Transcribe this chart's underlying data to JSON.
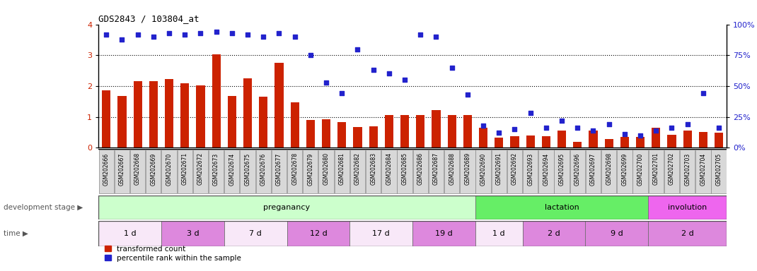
{
  "title": "GDS2843 / 103804_at",
  "samples": [
    "GSM202666",
    "GSM202667",
    "GSM202668",
    "GSM202669",
    "GSM202670",
    "GSM202671",
    "GSM202672",
    "GSM202673",
    "GSM202674",
    "GSM202675",
    "GSM202676",
    "GSM202677",
    "GSM202678",
    "GSM202679",
    "GSM202680",
    "GSM202681",
    "GSM202682",
    "GSM202683",
    "GSM202684",
    "GSM202685",
    "GSM202686",
    "GSM202687",
    "GSM202688",
    "GSM202689",
    "GSM202690",
    "GSM202691",
    "GSM202692",
    "GSM202693",
    "GSM202694",
    "GSM202695",
    "GSM202696",
    "GSM202697",
    "GSM202698",
    "GSM202699",
    "GSM202700",
    "GSM202701",
    "GSM202702",
    "GSM202703",
    "GSM202704",
    "GSM202705"
  ],
  "bar_values": [
    1.85,
    1.68,
    2.15,
    2.15,
    2.22,
    2.1,
    2.02,
    3.03,
    1.68,
    2.25,
    1.65,
    2.75,
    1.48,
    0.9,
    0.92,
    0.84,
    0.68,
    0.7,
    1.05,
    1.05,
    1.05,
    1.22,
    1.05,
    1.05,
    0.65,
    0.32,
    0.38,
    0.4,
    0.38,
    0.55,
    0.2,
    0.55,
    0.28,
    0.35,
    0.35,
    0.65,
    0.42,
    0.56,
    0.5,
    0.48
  ],
  "dot_values": [
    92,
    88,
    92,
    90,
    93,
    92,
    93,
    94,
    93,
    92,
    90,
    93,
    90,
    75,
    53,
    44,
    80,
    63,
    60,
    55,
    92,
    90,
    65,
    43,
    18,
    12,
    15,
    28,
    16,
    22,
    16,
    14,
    19,
    11,
    10,
    14,
    16,
    19,
    44,
    16
  ],
  "ylim": [
    0,
    4
  ],
  "yticks": [
    0,
    1,
    2,
    3,
    4
  ],
  "right_ylim": [
    0,
    100
  ],
  "right_yticks": [
    0,
    25,
    50,
    75,
    100
  ],
  "bar_color": "#cc2200",
  "dot_color": "#2222cc",
  "background_color": "#ffffff",
  "plot_bg": "#ffffff",
  "dev_stage_row": [
    {
      "label": "preganancy",
      "start": 0,
      "end": 24,
      "color": "#ccffcc"
    },
    {
      "label": "lactation",
      "start": 24,
      "end": 35,
      "color": "#66ee66"
    },
    {
      "label": "involution",
      "start": 35,
      "end": 40,
      "color": "#ee66ee"
    }
  ],
  "time_row": [
    {
      "label": "1 d",
      "start": 0,
      "end": 4,
      "color": "#f8e8f8"
    },
    {
      "label": "3 d",
      "start": 4,
      "end": 8,
      "color": "#dd88dd"
    },
    {
      "label": "7 d",
      "start": 8,
      "end": 12,
      "color": "#f8e8f8"
    },
    {
      "label": "12 d",
      "start": 12,
      "end": 16,
      "color": "#dd88dd"
    },
    {
      "label": "17 d",
      "start": 16,
      "end": 20,
      "color": "#f8e8f8"
    },
    {
      "label": "19 d",
      "start": 20,
      "end": 24,
      "color": "#dd88dd"
    },
    {
      "label": "1 d",
      "start": 24,
      "end": 27,
      "color": "#f8e8f8"
    },
    {
      "label": "2 d",
      "start": 27,
      "end": 31,
      "color": "#dd88dd"
    },
    {
      "label": "9 d",
      "start": 31,
      "end": 35,
      "color": "#dd88dd"
    },
    {
      "label": "2 d",
      "start": 35,
      "end": 40,
      "color": "#dd88dd"
    }
  ],
  "xtick_bg": "#d8d8d8",
  "xtick_border": "#888888"
}
